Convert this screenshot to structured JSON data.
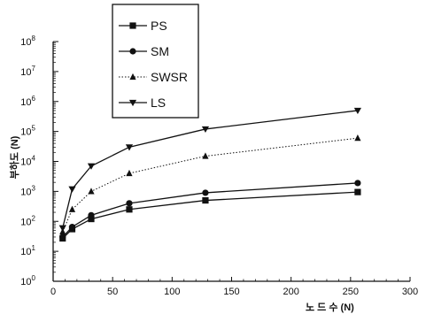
{
  "chart_data": {
    "type": "line",
    "title": "",
    "xlabel": "노 드 수 (N)",
    "ylabel": "부하도 (N)",
    "xlim": [
      0,
      300
    ],
    "ylim_log10": [
      0,
      8
    ],
    "y_scale": "log",
    "x_ticks": [
      "0",
      "50",
      "100",
      "150",
      "200",
      "250",
      "300"
    ],
    "x_tick_values": [
      0,
      50,
      100,
      150,
      200,
      250,
      300
    ],
    "y_ticks": [
      {
        "base": "10",
        "exp": "0"
      },
      {
        "base": "10",
        "exp": "1"
      },
      {
        "base": "10",
        "exp": "2"
      },
      {
        "base": "10",
        "exp": "3"
      },
      {
        "base": "10",
        "exp": "4"
      },
      {
        "base": "10",
        "exp": "5"
      },
      {
        "base": "10",
        "exp": "6"
      },
      {
        "base": "10",
        "exp": "7"
      },
      {
        "base": "10",
        "exp": "8"
      }
    ],
    "grid": false,
    "legend_position": "top-center",
    "x": [
      8,
      16,
      32,
      64,
      128,
      256
    ],
    "series": [
      {
        "name": "PS",
        "marker": "square",
        "dash": "solid",
        "values": [
          27,
          55,
          120,
          250,
          500,
          950
        ]
      },
      {
        "name": "SM",
        "marker": "circle",
        "dash": "solid",
        "values": [
          30,
          65,
          160,
          400,
          900,
          1900
        ]
      },
      {
        "name": "SWSR",
        "marker": "triangle-up",
        "dash": "dotted",
        "values": [
          45,
          250,
          1000,
          4000,
          15000,
          60000
        ]
      },
      {
        "name": "LS",
        "marker": "triangle-down",
        "dash": "solid",
        "values": [
          60,
          1200,
          7000,
          30000,
          120000,
          500000
        ]
      }
    ]
  }
}
